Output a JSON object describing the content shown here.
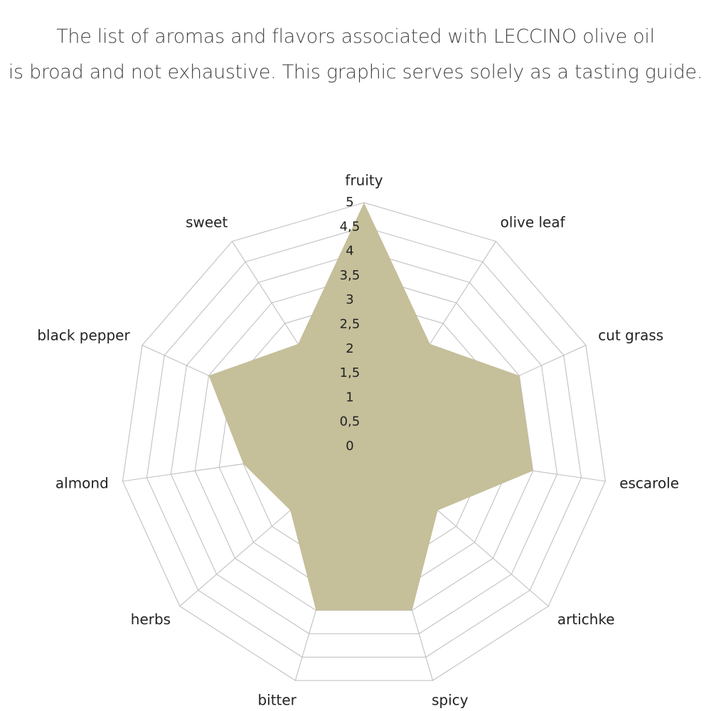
{
  "chart_data": {
    "type": "radar",
    "title_lines": [
      "The list of aromas and flavors associated with LECCINO olive oil",
      "is broad and not exhaustive. This graphic serves solely as a tasting guide."
    ],
    "categories": [
      "fruity",
      "olive leaf",
      "cut grass",
      "escarole",
      "artichke",
      "spicy",
      "bitter",
      "herbs",
      "almond",
      "black pepper",
      "sweet"
    ],
    "values": [
      5,
      2.5,
      3.5,
      3.5,
      2,
      3.5,
      3.5,
      2,
      2.5,
      3.5,
      2.5
    ],
    "color": "#c5bf9a",
    "ylim": [
      0,
      5
    ],
    "yticks": [
      0,
      {
        "value": 0.5,
        "label": "0,5"
      },
      1,
      {
        "value": 1.5,
        "label": "1,5"
      },
      2,
      {
        "value": 2.5,
        "label": "2,5"
      },
      3,
      {
        "value": 3.5,
        "label": "3,5"
      },
      4,
      {
        "value": 4.5,
        "label": "4,5"
      },
      5
    ],
    "grid": true
  }
}
